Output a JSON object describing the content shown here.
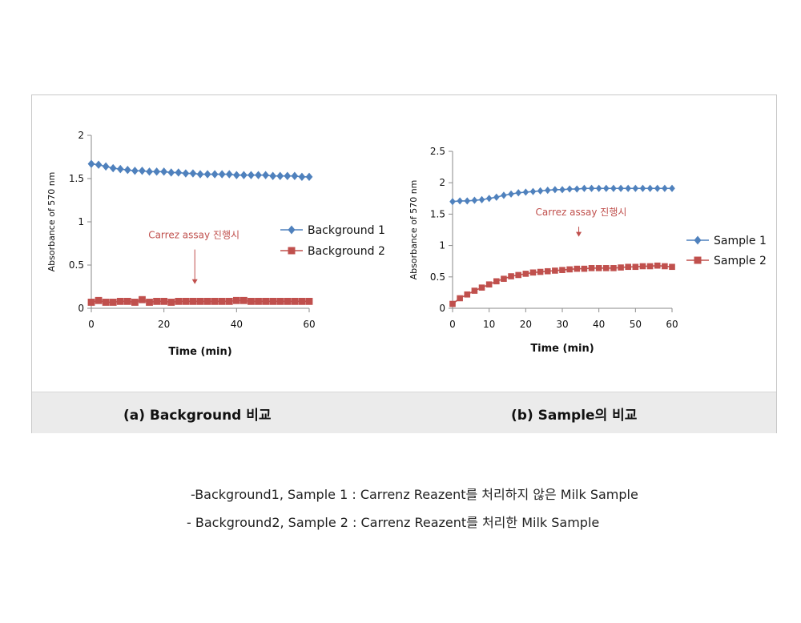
{
  "captions": {
    "a": "(a) Background 비교",
    "b": "(b) Sample의 비교"
  },
  "notes": [
    "-Background1, Sample 1 : Carrenz Reazent를 처리하지 않은 Milk Sample",
    "- Background2, Sample 2 : Carrenz Reazent를 처리한 Milk Sample"
  ],
  "colors": {
    "series1": "#4f81bd",
    "series2": "#c0504d",
    "annotation": "#c0504d"
  },
  "chart_data": [
    {
      "type": "line",
      "title": "",
      "xlabel": "Time (min)",
      "ylabel": "Absorbance of 570 nm",
      "xlim": [
        0,
        60
      ],
      "ylim": [
        0,
        2
      ],
      "xticks": [
        0,
        20,
        40,
        60
      ],
      "yticks": [
        0,
        0.5,
        1,
        1.5,
        2
      ],
      "ytick_labels": [
        "0",
        "0.5",
        "1",
        "1.5",
        "2"
      ],
      "legend": "right",
      "grid": false,
      "annotation": {
        "text": "Carrez assay 진행시",
        "x": 28.5,
        "y_from": 0.68,
        "y_to": 0.28
      },
      "series": [
        {
          "name": "Background 1",
          "marker": "diamond",
          "x": [
            0,
            2,
            4,
            6,
            8,
            10,
            12,
            14,
            16,
            18,
            20,
            22,
            24,
            26,
            28,
            30,
            32,
            34,
            36,
            38,
            40,
            42,
            44,
            46,
            48,
            50,
            52,
            54,
            56,
            58,
            60
          ],
          "y": [
            1.67,
            1.66,
            1.64,
            1.62,
            1.61,
            1.6,
            1.59,
            1.59,
            1.58,
            1.58,
            1.58,
            1.57,
            1.57,
            1.56,
            1.56,
            1.55,
            1.55,
            1.55,
            1.55,
            1.55,
            1.54,
            1.54,
            1.54,
            1.54,
            1.54,
            1.53,
            1.53,
            1.53,
            1.53,
            1.52,
            1.52
          ]
        },
        {
          "name": "Background 2",
          "marker": "square",
          "x": [
            0,
            2,
            4,
            6,
            8,
            10,
            12,
            14,
            16,
            18,
            20,
            22,
            24,
            26,
            28,
            30,
            32,
            34,
            36,
            38,
            40,
            42,
            44,
            46,
            48,
            50,
            52,
            54,
            56,
            58,
            60
          ],
          "y": [
            0.07,
            0.09,
            0.07,
            0.07,
            0.08,
            0.08,
            0.07,
            0.1,
            0.07,
            0.08,
            0.08,
            0.07,
            0.08,
            0.08,
            0.08,
            0.08,
            0.08,
            0.08,
            0.08,
            0.08,
            0.09,
            0.09,
            0.08,
            0.08,
            0.08,
            0.08,
            0.08,
            0.08,
            0.08,
            0.08,
            0.08
          ]
        }
      ]
    },
    {
      "type": "line",
      "title": "",
      "xlabel": "Time (min)",
      "ylabel": "Absorbance of 570 nm",
      "xlim": [
        0,
        60
      ],
      "ylim": [
        0,
        2.5
      ],
      "xticks": [
        0,
        10,
        20,
        30,
        40,
        50,
        60
      ],
      "yticks": [
        0,
        0.5,
        1,
        1.5,
        2,
        2.5
      ],
      "ytick_labels": [
        "0",
        "0.5",
        "1",
        "1.5",
        "2",
        "2.5"
      ],
      "legend": "right",
      "grid": false,
      "annotation": {
        "text": "Carrez assay 진행시",
        "x": 34.5,
        "y_from": 1.3,
        "y_to": 1.14
      },
      "series": [
        {
          "name": "Sample 1",
          "marker": "diamond",
          "x": [
            0,
            2,
            4,
            6,
            8,
            10,
            12,
            14,
            16,
            18,
            20,
            22,
            24,
            26,
            28,
            30,
            32,
            34,
            36,
            38,
            40,
            42,
            44,
            46,
            48,
            50,
            52,
            54,
            56,
            58,
            60
          ],
          "y": [
            1.7,
            1.71,
            1.71,
            1.72,
            1.73,
            1.75,
            1.77,
            1.8,
            1.82,
            1.84,
            1.85,
            1.86,
            1.87,
            1.88,
            1.89,
            1.89,
            1.9,
            1.9,
            1.91,
            1.91,
            1.91,
            1.91,
            1.91,
            1.91,
            1.91,
            1.91,
            1.91,
            1.91,
            1.91,
            1.91,
            1.91
          ]
        },
        {
          "name": "Sample 2",
          "marker": "square",
          "x": [
            0,
            2,
            4,
            6,
            8,
            10,
            12,
            14,
            16,
            18,
            20,
            22,
            24,
            26,
            28,
            30,
            32,
            34,
            36,
            38,
            40,
            42,
            44,
            46,
            48,
            50,
            52,
            54,
            56,
            58,
            60
          ],
          "y": [
            0.07,
            0.16,
            0.22,
            0.28,
            0.33,
            0.38,
            0.43,
            0.47,
            0.51,
            0.53,
            0.55,
            0.57,
            0.58,
            0.59,
            0.6,
            0.61,
            0.62,
            0.63,
            0.63,
            0.64,
            0.64,
            0.64,
            0.64,
            0.65,
            0.66,
            0.66,
            0.67,
            0.67,
            0.68,
            0.67,
            0.66
          ]
        }
      ]
    }
  ]
}
